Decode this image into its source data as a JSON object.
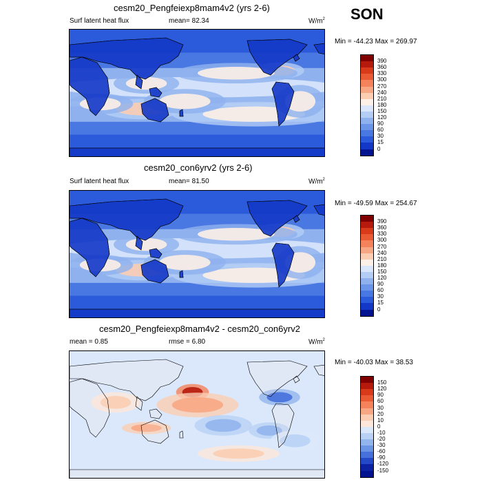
{
  "season": "SON",
  "panels": [
    {
      "title": "cesm20_Pengfeiexp8mam4v2 (yrs 2-6)",
      "left_label": "Surf latent heat flux",
      "mean_text": "mean=  82.34",
      "units": "W/m",
      "units_sup": "2",
      "minmax": "Min = -44.23 Max = 269.97",
      "cb_labels": [
        "390",
        "360",
        "330",
        "300",
        "270",
        "240",
        "210",
        "180",
        "150",
        "120",
        "90",
        "60",
        "30",
        "15",
        "0"
      ],
      "cb_colors": [
        "#800000",
        "#b51a0c",
        "#d83a1a",
        "#ea5b34",
        "#f4825a",
        "#f8a784",
        "#fbcdb3",
        "#fdf0e6",
        "#d9e6fb",
        "#b3cdf5",
        "#8fb2ef",
        "#6a95e8",
        "#4a78e2",
        "#2b5bdb",
        "#1338c8",
        "#03128f"
      ]
    },
    {
      "title": "cesm20_con6yrv2 (yrs 2-6)",
      "left_label": "Surf latent heat flux",
      "mean_text": "mean=  81.50",
      "units": "W/m",
      "units_sup": "2",
      "minmax": "Min = -49.59 Max = 254.67",
      "cb_labels": [
        "390",
        "360",
        "330",
        "300",
        "270",
        "240",
        "210",
        "180",
        "150",
        "120",
        "90",
        "60",
        "30",
        "15",
        "0"
      ],
      "cb_colors": [
        "#800000",
        "#b51a0c",
        "#d83a1a",
        "#ea5b34",
        "#f4825a",
        "#f8a784",
        "#fbcdb3",
        "#fdf0e6",
        "#d9e6fb",
        "#b3cdf5",
        "#8fb2ef",
        "#6a95e8",
        "#4a78e2",
        "#2b5bdb",
        "#1338c8",
        "#03128f"
      ]
    },
    {
      "title": "cesm20_Pengfeiexp8mam4v2 - cesm20_con6yrv2",
      "left_label": "mean =   0.85",
      "mean_text": "rmse =   6.80",
      "units": "W/m",
      "units_sup": "2",
      "minmax": "Min = -40.03 Max =  38.53",
      "cb_labels": [
        "150",
        "120",
        "90",
        "60",
        "30",
        "20",
        "10",
        "0",
        "-10",
        "-20",
        "-30",
        "-60",
        "-90",
        "-120",
        "-150"
      ],
      "cb_colors": [
        "#800000",
        "#b51a0c",
        "#d83a1a",
        "#ea5b34",
        "#f4825a",
        "#f8a784",
        "#fbcdb3",
        "#fde7da",
        "#dbe8fb",
        "#b8d1f5",
        "#92b5ee",
        "#6b94e5",
        "#4670db",
        "#2348c8",
        "#0c22a3",
        "#03128f"
      ]
    }
  ],
  "chart_data": [
    {
      "type": "heatmap",
      "title": "cesm20_Pengfeiexp8mam4v2 (yrs 2-6)",
      "variable": "Surf latent heat flux",
      "season": "SON",
      "units": "W/m2",
      "mean": 82.34,
      "min": -44.23,
      "max": 269.97,
      "contour_levels": [
        0,
        15,
        30,
        60,
        90,
        120,
        150,
        180,
        210,
        240,
        270,
        300,
        330,
        360,
        390
      ],
      "colors": [
        "#03128f",
        "#1338c8",
        "#2b5bdb",
        "#4a78e2",
        "#6a95e8",
        "#8fb2ef",
        "#b3cdf5",
        "#d9e6fb",
        "#fdf0e6",
        "#fbcdb3",
        "#f8a784",
        "#f4825a",
        "#ea5b34",
        "#d83a1a",
        "#b51a0c",
        "#800000"
      ]
    },
    {
      "type": "heatmap",
      "title": "cesm20_con6yrv2 (yrs 2-6)",
      "variable": "Surf latent heat flux",
      "season": "SON",
      "units": "W/m2",
      "mean": 81.5,
      "min": -49.59,
      "max": 254.67,
      "contour_levels": [
        0,
        15,
        30,
        60,
        90,
        120,
        150,
        180,
        210,
        240,
        270,
        300,
        330,
        360,
        390
      ],
      "colors": [
        "#03128f",
        "#1338c8",
        "#2b5bdb",
        "#4a78e2",
        "#6a95e8",
        "#8fb2ef",
        "#b3cdf5",
        "#d9e6fb",
        "#fdf0e6",
        "#fbcdb3",
        "#f8a784",
        "#f4825a",
        "#ea5b34",
        "#d83a1a",
        "#b51a0c",
        "#800000"
      ]
    },
    {
      "type": "heatmap",
      "title": "cesm20_Pengfeiexp8mam4v2 - cesm20_con6yrv2",
      "season": "SON",
      "units": "W/m2",
      "mean": 0.85,
      "rmse": 6.8,
      "min": -40.03,
      "max": 38.53,
      "contour_levels": [
        -150,
        -120,
        -90,
        -60,
        -30,
        -20,
        -10,
        0,
        10,
        20,
        30,
        60,
        90,
        120,
        150
      ],
      "colors": [
        "#03128f",
        "#0c22a3",
        "#2348c8",
        "#4670db",
        "#6b94e5",
        "#92b5ee",
        "#b8d1f5",
        "#dbe8fb",
        "#fde7da",
        "#fbcdb3",
        "#f8a784",
        "#f4825a",
        "#ea5b34",
        "#d83a1a",
        "#b51a0c",
        "#800000"
      ]
    }
  ]
}
